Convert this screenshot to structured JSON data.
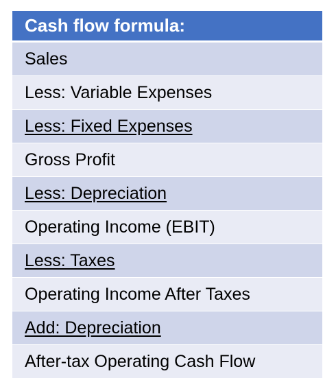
{
  "header": {
    "title": "Cash flow formula:"
  },
  "rows": [
    {
      "label": "Sales"
    },
    {
      "label": "Less: Variable Expenses"
    },
    {
      "label": "Less: Fixed Expenses"
    },
    {
      "label": "Gross Profit"
    },
    {
      "label": "Less: Depreciation"
    },
    {
      "label": "Operating Income (EBIT)"
    },
    {
      "label": "Less: Taxes"
    },
    {
      "label": "Operating Income After Taxes"
    },
    {
      "label": "Add: Depreciation"
    },
    {
      "label": "After-tax Operating Cash Flow"
    }
  ],
  "colors": {
    "header": "#4472C4",
    "row_dark": "#CFD5EA",
    "row_light": "#E9EBF5"
  }
}
